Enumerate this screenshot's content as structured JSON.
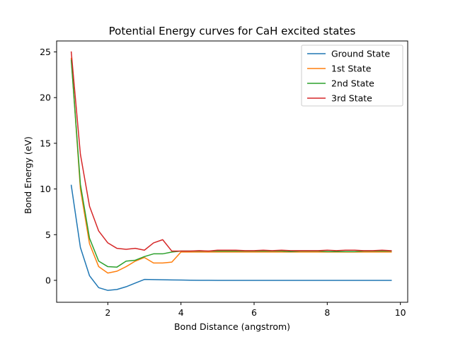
{
  "chart_data": {
    "type": "line",
    "title": "Potential Energy curves for CaH excited states",
    "xlabel": "Bond Distance (angstrom)",
    "ylabel": "Bond Energy (eV)",
    "xlim": [
      0.6,
      10.2
    ],
    "ylim": [
      -2.4,
      26.2
    ],
    "xticks": [
      2,
      4,
      6,
      8,
      10
    ],
    "yticks": [
      0,
      5,
      10,
      15,
      20,
      25
    ],
    "grid": false,
    "legend_position": "top-right",
    "x": [
      1.0,
      1.25,
      1.5,
      1.75,
      2.0,
      2.25,
      2.5,
      2.75,
      3.0,
      3.25,
      3.5,
      3.75,
      4.0,
      4.25,
      4.5,
      4.75,
      5.0,
      5.25,
      5.5,
      5.75,
      6.0,
      6.25,
      6.5,
      6.75,
      7.0,
      7.25,
      7.5,
      7.75,
      8.0,
      8.25,
      8.5,
      8.75,
      9.0,
      9.25,
      9.5,
      9.75
    ],
    "series": [
      {
        "name": "Ground State",
        "color": "#1f77b4",
        "values": [
          10.4,
          3.6,
          0.5,
          -0.8,
          -1.1,
          -1.0,
          -0.7,
          -0.3,
          0.1,
          0.08,
          0.06,
          0.04,
          0.03,
          0.02,
          0.01,
          0.01,
          0.0,
          0.0,
          0.0,
          0.0,
          0.0,
          0.0,
          0.0,
          0.0,
          0.0,
          0.0,
          0.0,
          0.0,
          0.0,
          0.0,
          0.0,
          0.0,
          0.0,
          0.0,
          0.0,
          0.0
        ]
      },
      {
        "name": "1st State",
        "color": "#ff7f0e",
        "values": [
          24.3,
          10.0,
          4.0,
          1.5,
          0.8,
          1.0,
          1.5,
          2.1,
          2.5,
          1.9,
          1.9,
          2.0,
          3.1,
          3.1,
          3.1,
          3.1,
          3.1,
          3.1,
          3.1,
          3.1,
          3.1,
          3.1,
          3.1,
          3.1,
          3.1,
          3.1,
          3.1,
          3.1,
          3.1,
          3.1,
          3.1,
          3.1,
          3.1,
          3.1,
          3.1,
          3.1
        ]
      },
      {
        "name": "2nd State",
        "color": "#2ca02c",
        "values": [
          24.1,
          10.5,
          4.6,
          2.1,
          1.5,
          1.45,
          2.1,
          2.2,
          2.6,
          2.9,
          2.9,
          3.1,
          3.2,
          3.2,
          3.2,
          3.2,
          3.2,
          3.2,
          3.2,
          3.2,
          3.2,
          3.2,
          3.2,
          3.2,
          3.15,
          3.2,
          3.2,
          3.2,
          3.15,
          3.15,
          3.15,
          3.15,
          3.2,
          3.2,
          3.2,
          3.2
        ]
      },
      {
        "name": "3rd State",
        "color": "#d62728",
        "values": [
          25.0,
          13.8,
          8.1,
          5.4,
          4.1,
          3.5,
          3.4,
          3.5,
          3.3,
          4.1,
          4.45,
          3.2,
          3.2,
          3.2,
          3.25,
          3.2,
          3.3,
          3.3,
          3.3,
          3.25,
          3.25,
          3.3,
          3.25,
          3.3,
          3.25,
          3.25,
          3.25,
          3.25,
          3.3,
          3.25,
          3.3,
          3.3,
          3.25,
          3.25,
          3.3,
          3.25
        ]
      }
    ]
  }
}
